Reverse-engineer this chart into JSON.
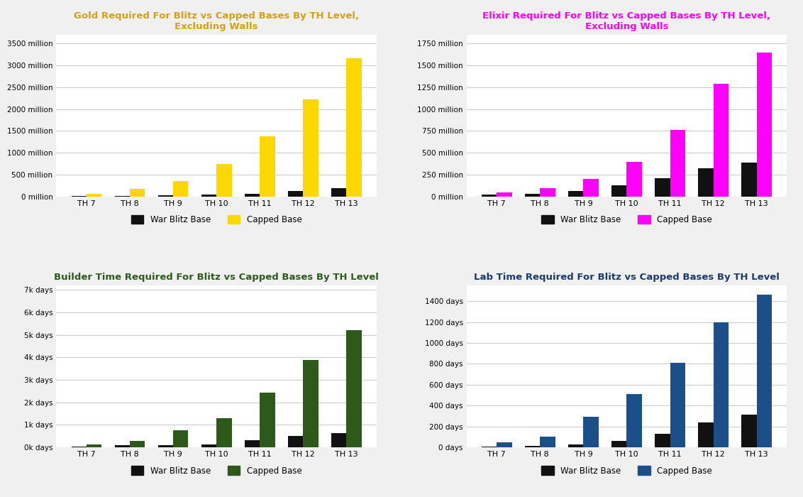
{
  "categories": [
    "TH 7",
    "TH 8",
    "TH 9",
    "TH 10",
    "TH 11",
    "TH 12",
    "TH 13"
  ],
  "gold_blitz": [
    10,
    20,
    25,
    40,
    60,
    120,
    200
  ],
  "gold_capped": [
    70,
    170,
    350,
    750,
    1380,
    2230,
    3170
  ],
  "gold_title": "Gold Required For Blitz vs Capped Bases By TH Level,\nExcluding Walls",
  "gold_title_color": "#D4A017",
  "gold_capped_color": "#FFD700",
  "gold_yticks": [
    0,
    500,
    1000,
    1500,
    2000,
    2500,
    3000,
    3500
  ],
  "gold_ytick_labels": [
    "0 million",
    "500 million",
    "1000 million",
    "1500 million",
    "2000 million",
    "2500 million",
    "3000 million",
    "3500 million"
  ],
  "gold_ylim": [
    0,
    3700
  ],
  "elixir_blitz": [
    20,
    35,
    60,
    130,
    210,
    320,
    390
  ],
  "elixir_capped": [
    45,
    100,
    200,
    400,
    760,
    1290,
    1650
  ],
  "elixir_title": "Elixir Required For Blitz vs Capped Bases By TH Level,\nExcluding Walls",
  "elixir_title_color": "#FF00FF",
  "elixir_capped_color": "#FF00FF",
  "elixir_yticks": [
    0,
    250,
    500,
    750,
    1000,
    1250,
    1500,
    1750
  ],
  "elixir_ytick_labels": [
    "0 million",
    "250 million",
    "500 million",
    "750 million",
    "1000 million",
    "1250 million",
    "1500 million",
    "1750 million"
  ],
  "elixir_ylim": [
    0,
    1850
  ],
  "builder_blitz": [
    30,
    80,
    100,
    130,
    310,
    510,
    630
  ],
  "builder_capped": [
    120,
    280,
    760,
    1310,
    2420,
    3890,
    5200
  ],
  "builder_title": "Builder Time Required For Blitz vs Capped Bases By TH Level",
  "builder_title_color": "#2d5a1b",
  "builder_capped_color": "#2d5a1b",
  "builder_yticks": [
    0,
    1000,
    2000,
    3000,
    4000,
    5000,
    6000,
    7000
  ],
  "builder_ytick_labels": [
    "0k days",
    "1k days",
    "2k days",
    "3k days",
    "4k days",
    "5k days",
    "6k days",
    "7k days"
  ],
  "builder_ylim": [
    0,
    7200
  ],
  "lab_blitz": [
    5,
    15,
    30,
    60,
    130,
    240,
    310
  ],
  "lab_capped": [
    45,
    100,
    290,
    510,
    810,
    1200,
    1460
  ],
  "lab_title": "Lab Time Required For Blitz vs Capped Bases By TH Level",
  "lab_title_color": "#1a3a6b",
  "lab_capped_color": "#1a4f8a",
  "lab_yticks": [
    0,
    200,
    400,
    600,
    800,
    1000,
    1200,
    1400
  ],
  "lab_ytick_labels": [
    "0 days",
    "200 days",
    "400 days",
    "600 days",
    "800 days",
    "1000 days",
    "1200 days",
    "1400 days"
  ],
  "lab_ylim": [
    0,
    1550
  ],
  "blitz_color": "#111111",
  "background_color": "#f0f0f0",
  "panel_background": "#ffffff",
  "grid_color": "#cccccc",
  "legend_label_blitz": "War Blitz Base",
  "legend_label_capped": "Capped Base"
}
